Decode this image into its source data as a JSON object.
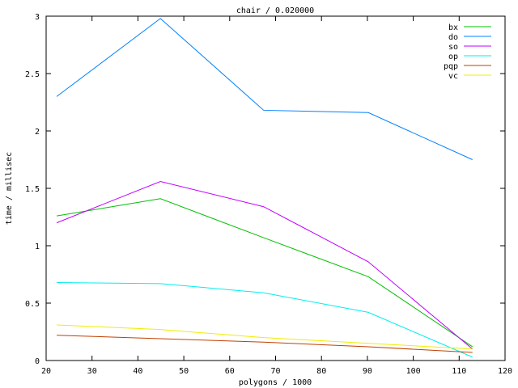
{
  "chart_data": {
    "type": "line",
    "title": "chair / 0.020000",
    "xlabel": "polygons / 1000",
    "ylabel": "time / millisec",
    "xlim": [
      20,
      120
    ],
    "ylim": [
      0,
      3
    ],
    "xticks": [
      20,
      30,
      40,
      50,
      60,
      70,
      80,
      90,
      100,
      110,
      120
    ],
    "yticks": [
      0,
      0.5,
      1,
      1.5,
      2,
      2.5,
      3
    ],
    "xtick_labels": [
      "20",
      "30",
      "40",
      "50",
      "60",
      "70",
      "80",
      "90",
      "100",
      "110",
      "120"
    ],
    "ytick_labels": [
      "0",
      "0.5",
      "1",
      "1.5",
      "2",
      "2.5",
      "3"
    ],
    "legend_position": "top-right",
    "grid": false,
    "x": [
      22.3,
      44.9,
      67.4,
      90.2,
      112.9
    ],
    "series": [
      {
        "name": "bx",
        "color": "#00c000",
        "values": [
          1.26,
          1.41,
          1.07,
          0.73,
          0.12
        ]
      },
      {
        "name": "do",
        "color": "#0080ff",
        "values": [
          2.3,
          2.98,
          2.18,
          2.16,
          1.75
        ]
      },
      {
        "name": "so",
        "color": "#c000ff",
        "values": [
          1.2,
          1.56,
          1.34,
          0.86,
          0.1
        ]
      },
      {
        "name": "op",
        "color": "#00eeee",
        "values": [
          0.68,
          0.67,
          0.59,
          0.42,
          0.03
        ]
      },
      {
        "name": "pqp",
        "color": "#c04000",
        "values": [
          0.22,
          0.19,
          0.16,
          0.12,
          0.07
        ]
      },
      {
        "name": "vc",
        "color": "#eeee00",
        "values": [
          0.31,
          0.27,
          0.2,
          0.15,
          0.1
        ]
      }
    ]
  }
}
